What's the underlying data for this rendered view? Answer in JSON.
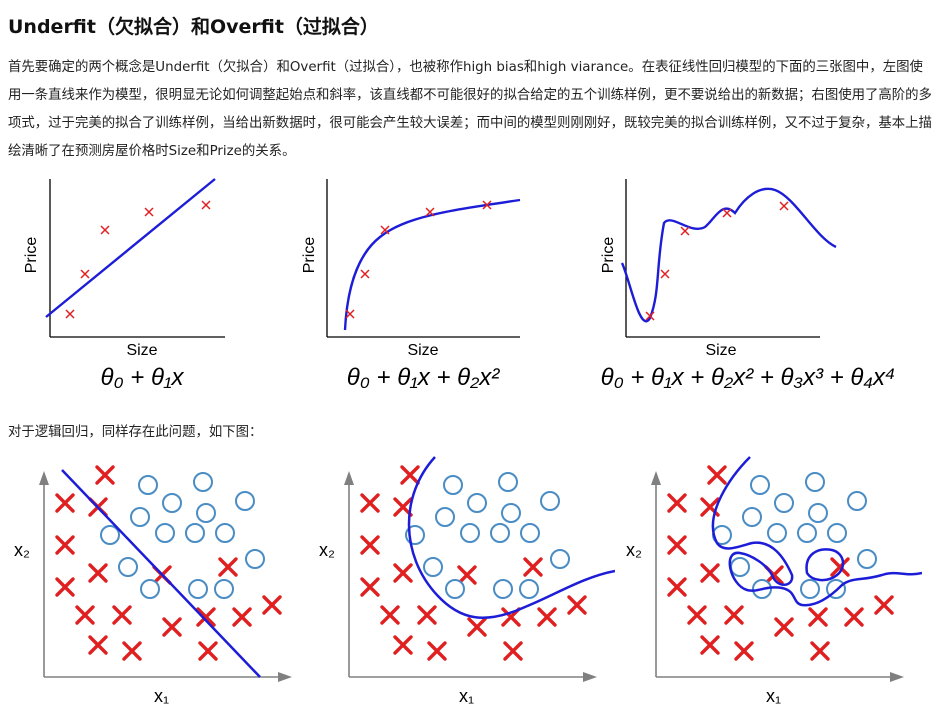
{
  "article": {
    "title": "Underfit（欠拟合）和Overfit（过拟合）",
    "paragraph": "首先要确定的两个概念是Underfit（欠拟合）和Overfit（过拟合），也被称作high bias和high viarance。在表征线性回归模型的下面的三张图中，左图使用一条直线来作为模型，很明显无论如何调整起始点和斜率，该直线都不可能很好的拟合给定的五个训练样例，更不要说给出的新数据；右图使用了高阶的多项式，过于完美的拟合了训练样例，当给出新数据时，很可能会产生较大误差；而中间的模型则刚刚好，既较完美的拟合训练样例，又不过于复杂，基本上描绘清晰了在预测房屋价格时Size和Prize的关系。",
    "caption": "对于逻辑回归，同样存在此问题，如下图："
  },
  "regression_figure": {
    "ylabel": "Price",
    "xlabel": "Size",
    "panels": [
      {
        "formula": "θ₀ + θ₁x"
      },
      {
        "formula": "θ₀ + θ₁x + θ₂x²"
      },
      {
        "formula": "θ₀ + θ₁x + θ₂x² + θ₃x³ + θ₄x⁴"
      }
    ]
  },
  "classification_figure": {
    "ylabel": "x₂",
    "xlabel": "x₁"
  },
  "colors": {
    "curve": "#1d1dd8",
    "cross": "#e02020",
    "circle": "#4a8cc4",
    "axis": "#808080"
  }
}
